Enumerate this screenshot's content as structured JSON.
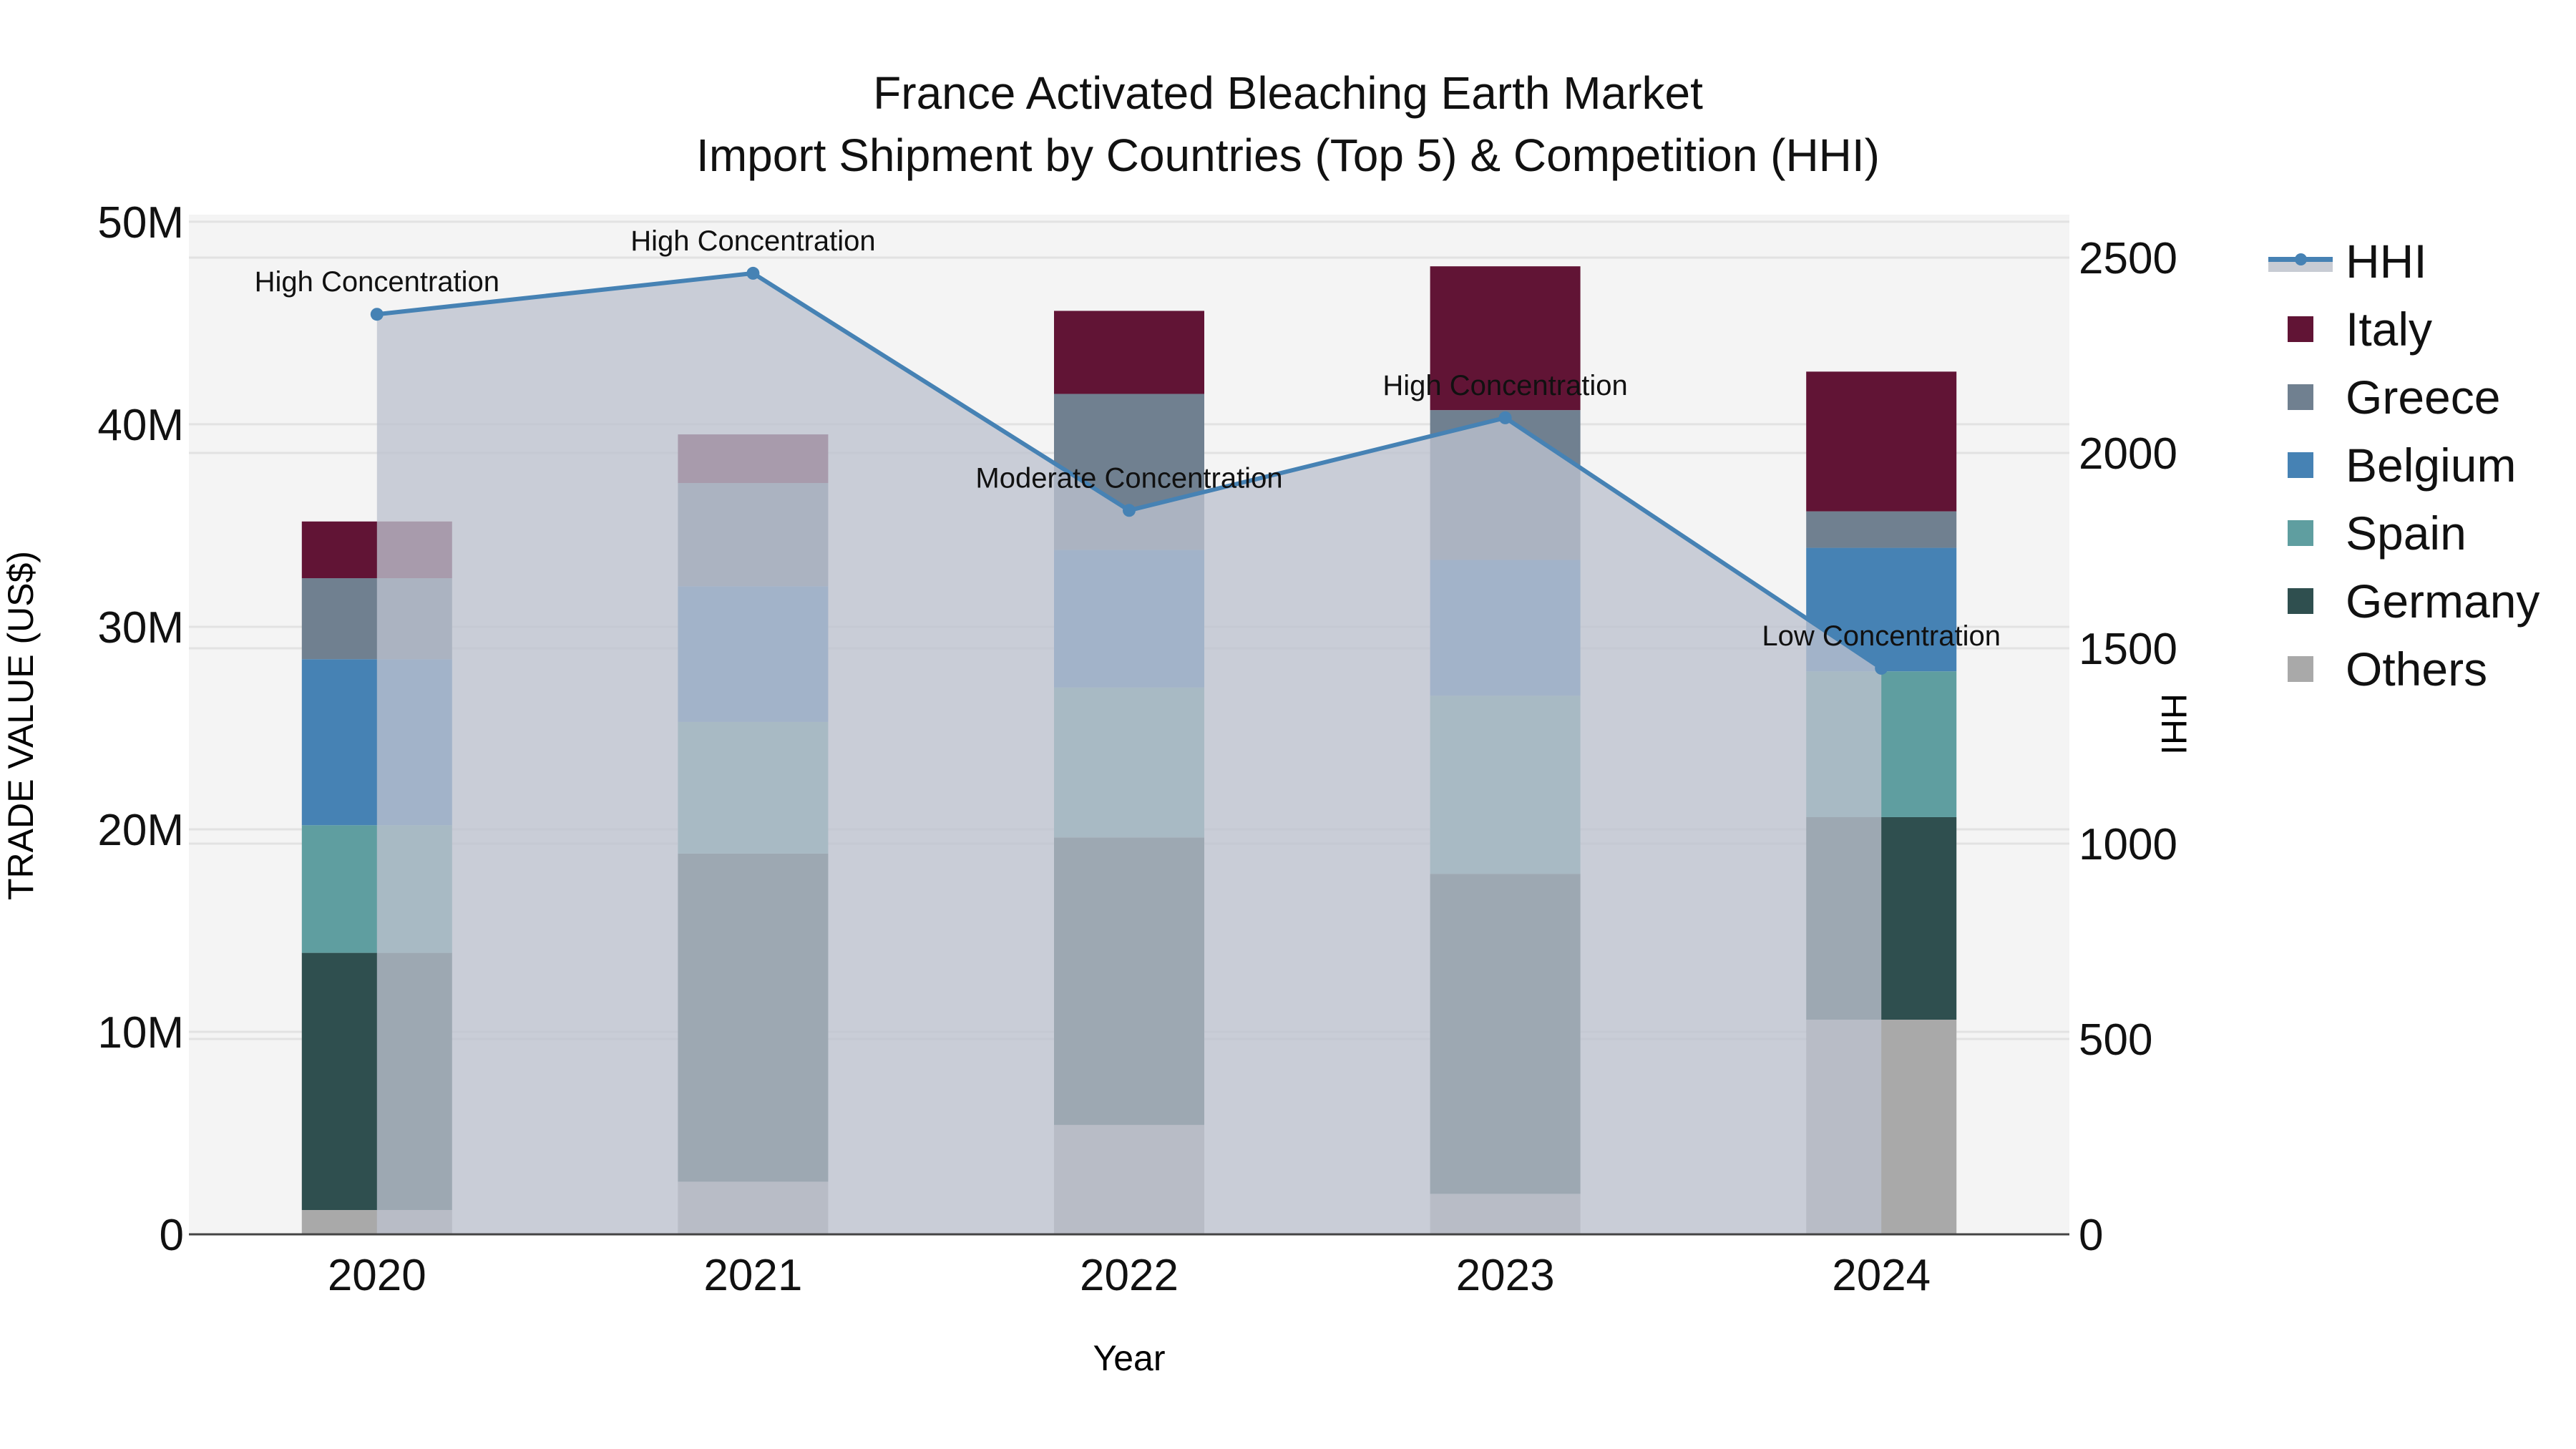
{
  "title": {
    "line1": "France Activated Bleaching Earth Market",
    "line2": "Import Shipment by Countries (Top 5) & Competition (HHI)"
  },
  "axes": {
    "x_title": "Year",
    "y_title": "TRADE VALUE (US$)",
    "y2_title": "HHI",
    "y_ticks": [
      "0",
      "10M",
      "20M",
      "30M",
      "40M",
      "50M"
    ],
    "y2_ticks": [
      "0",
      "500",
      "1000",
      "1500",
      "2000",
      "2500"
    ]
  },
  "legend": {
    "items": [
      {
        "label": "HHI",
        "color": "#4682b4",
        "kind": "line"
      },
      {
        "label": "Italy",
        "color": "#611435",
        "kind": "box"
      },
      {
        "label": "Greece",
        "color": "#708090",
        "kind": "box"
      },
      {
        "label": "Belgium",
        "color": "#4682b4",
        "kind": "box"
      },
      {
        "label": "Spain",
        "color": "#5f9ea0",
        "kind": "box"
      },
      {
        "label": "Germany",
        "color": "#2f4f4f",
        "kind": "box"
      },
      {
        "label": "Others",
        "color": "#a9a9a9",
        "kind": "box"
      }
    ]
  },
  "annotations": [
    "High Concentration",
    "High Concentration",
    "Moderate Concentration",
    "High Concentration",
    "Low Concentration"
  ],
  "chart_data": {
    "type": "bar",
    "stacked": true,
    "title": "France Activated Bleaching Earth Market Import Shipment by Countries (Top 5) & Competition (HHI)",
    "xlabel": "Year",
    "ylabel": "TRADE VALUE (US$)",
    "y2label": "HHI",
    "ylim": [
      0,
      50350000
    ],
    "y2lim": [
      0,
      2610
    ],
    "grid": true,
    "legend_position": "right",
    "categories": [
      "2020",
      "2021",
      "2022",
      "2023",
      "2024"
    ],
    "series": [
      {
        "name": "Others",
        "color": "#a9a9a9",
        "values": [
          1200000,
          2600000,
          5400000,
          2000000,
          10600000
        ]
      },
      {
        "name": "Germany",
        "color": "#2f4f4f",
        "values": [
          12700000,
          16200000,
          14200000,
          15800000,
          10000000
        ]
      },
      {
        "name": "Spain",
        "color": "#5f9ea0",
        "values": [
          6300000,
          6500000,
          7400000,
          8800000,
          7200000
        ]
      },
      {
        "name": "Belgium",
        "color": "#4682b4",
        "values": [
          8200000,
          6700000,
          6800000,
          6700000,
          6100000
        ]
      },
      {
        "name": "Greece",
        "color": "#708090",
        "values": [
          4000000,
          5100000,
          7700000,
          7400000,
          1800000
        ]
      },
      {
        "name": "Italy",
        "color": "#611435",
        "values": [
          2800000,
          2400000,
          4100000,
          7100000,
          6900000
        ]
      }
    ],
    "hhi": {
      "name": "HHI",
      "type": "line+area",
      "axis": "y2",
      "color": "#4682b4",
      "values": [
        2355,
        2460,
        1853,
        2090,
        1449
      ],
      "labels": [
        "High Concentration",
        "High Concentration",
        "Moderate Concentration",
        "High Concentration",
        "Low Concentration"
      ]
    }
  }
}
